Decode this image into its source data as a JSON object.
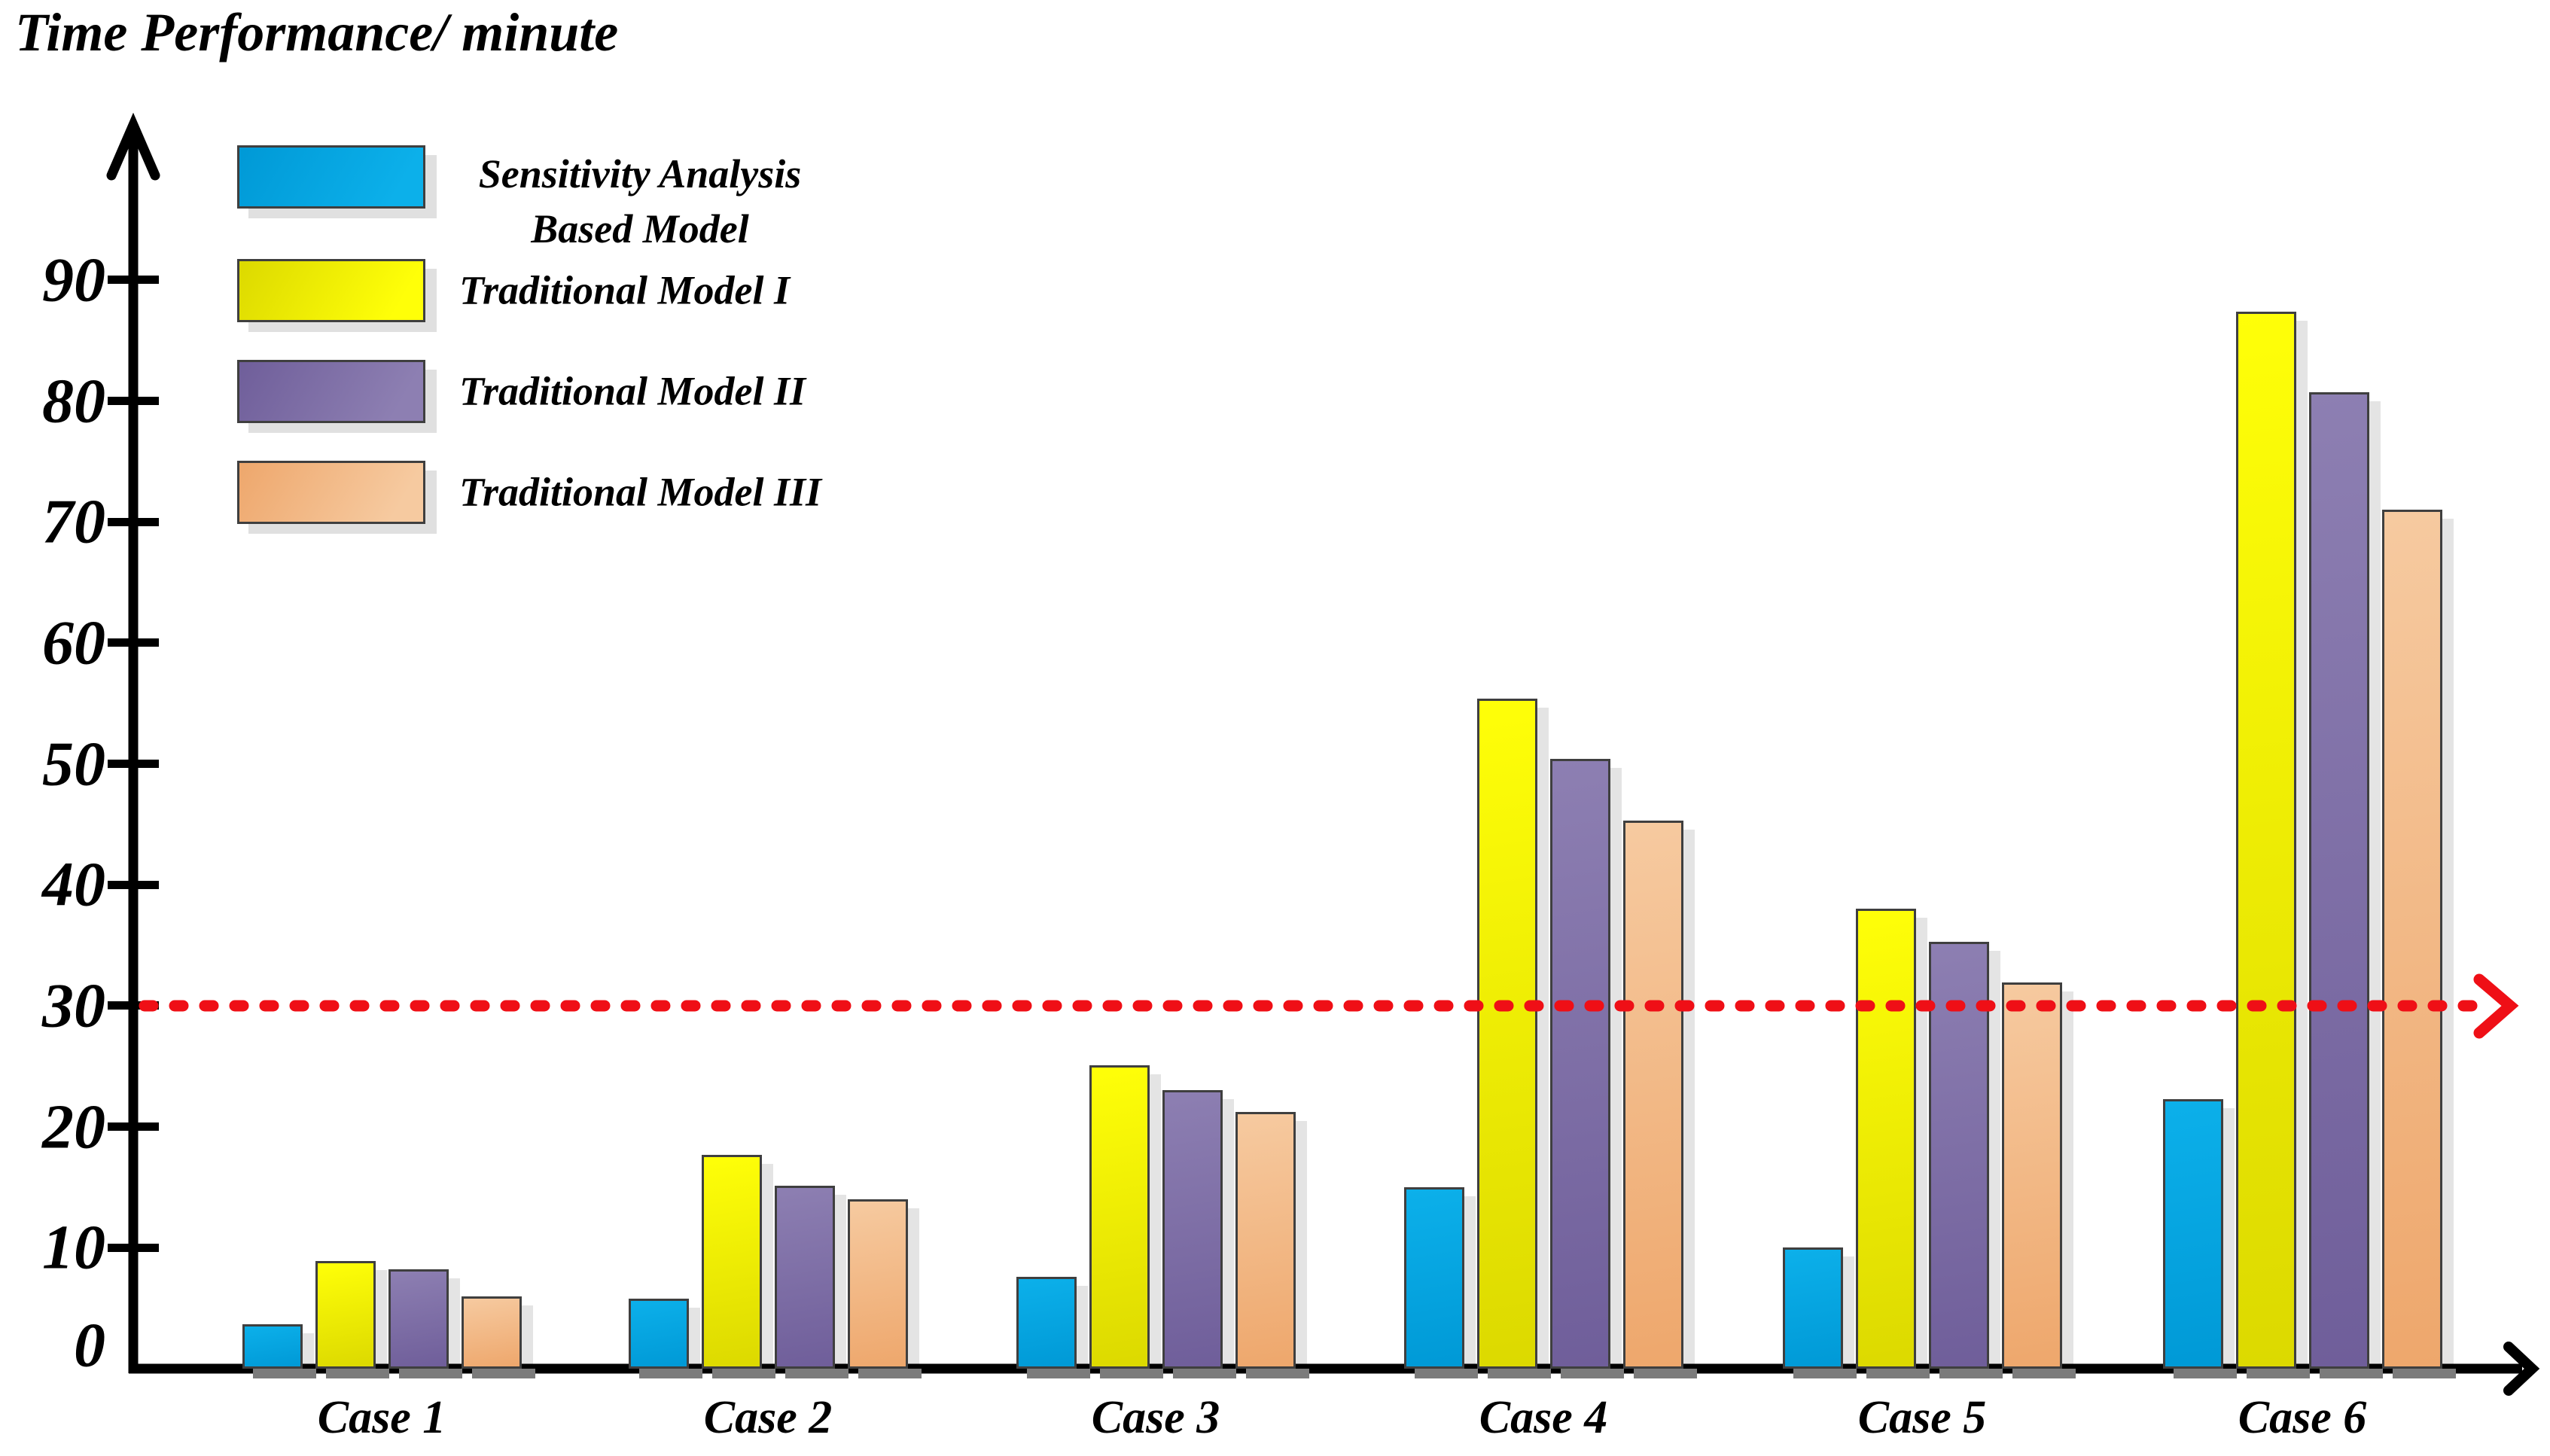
{
  "title": "Time Performance/ minute",
  "colors": {
    "axis": "#000000",
    "text": "#000000",
    "reference_line": "#ef0f16",
    "bar_border": "#3f3f3f",
    "bar_side_shadow": "#e4e4e4",
    "bar_base_shadow": "#7b7b7b",
    "legend_shadow": "#e0e0e0",
    "background": "#ffffff"
  },
  "chart_data": {
    "type": "bar",
    "title": "Time Performance/ minute",
    "xlabel": "",
    "ylabel": "Time Performance (minutes)",
    "categories": [
      "Case 1",
      "Case 2",
      "Case 3",
      "Case 4",
      "Case 5",
      "Case 6"
    ],
    "series": [
      {
        "name": "Sensitivity Analysis Based Model",
        "legend_label": "Sensitivity Analysis\nBased Model",
        "slug": "sensitivity-analysis-based-model",
        "gradient": [
          "#0cb0ea",
          "#0099d6"
        ],
        "values": [
          3.7,
          5.8,
          7.6,
          15.0,
          10.0,
          22.3
        ]
      },
      {
        "name": "Traditional Model I",
        "legend_label": "Traditional Model I",
        "slug": "traditional-model-1",
        "gradient": [
          "#ffff08",
          "#dcd900"
        ],
        "values": [
          8.9,
          17.7,
          25.1,
          55.4,
          38.0,
          87.4
        ]
      },
      {
        "name": "Traditional Model II",
        "legend_label": "Traditional Model II",
        "slug": "traditional-model-2",
        "gradient": [
          "#8d7fb2",
          "#6f5e9a"
        ],
        "values": [
          8.2,
          15.1,
          23.0,
          50.4,
          35.3,
          80.7
        ]
      },
      {
        "name": "Traditional Model III",
        "legend_label": "Traditional Model III",
        "slug": "traditional-model-3",
        "gradient": [
          "#f6caa0",
          "#eea76c"
        ],
        "values": [
          6.0,
          14.0,
          21.2,
          45.3,
          31.9,
          71.0
        ]
      }
    ],
    "yticks": [
      0,
      10,
      20,
      30,
      40,
      50,
      60,
      70,
      80,
      90
    ],
    "ylim": [
      0,
      95
    ],
    "grid": false,
    "legend_position": "upper-left",
    "reference_line": {
      "value": 30,
      "style": "dashed",
      "color": "#ef0f16",
      "arrow": "right"
    }
  }
}
